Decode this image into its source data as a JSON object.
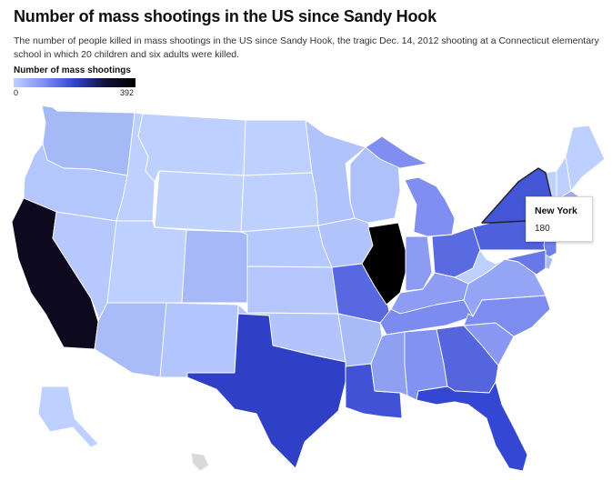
{
  "header": {
    "title": "Number of mass shootings in the US since Sandy Hook",
    "subtitle": "The number of people killed in mass shootings in the US since Sandy Hook, the tragic Dec. 14, 2012 shooting at a Connecticut elementary school in which 20 children and six adults were killed."
  },
  "legend": {
    "title": "Number of mass shootings",
    "min": "0",
    "max": "392"
  },
  "tooltip": {
    "state": "New York",
    "value": "180"
  },
  "footnote": "",
  "colors": {
    "scale": [
      "#bdd0ff",
      "#7f8df5",
      "#2f45d0",
      "#11123a",
      "#000000"
    ],
    "no_data": "#d9d9d9"
  },
  "states": [
    {
      "id": "WA",
      "name": "Washington",
      "fill": "#a6b9f7"
    },
    {
      "id": "OR",
      "name": "Oregon",
      "fill": "#b4c7fd"
    },
    {
      "id": "CA",
      "name": "California",
      "fill": "#0d0a1f"
    },
    {
      "id": "ID",
      "name": "Idaho",
      "fill": "#bdd0ff"
    },
    {
      "id": "NV",
      "name": "Nevada",
      "fill": "#b6c8fd"
    },
    {
      "id": "MT",
      "name": "Montana",
      "fill": "#bdd0ff"
    },
    {
      "id": "WY",
      "name": "Wyoming",
      "fill": "#c0d3ff"
    },
    {
      "id": "UT",
      "name": "Utah",
      "fill": "#bdd0ff"
    },
    {
      "id": "AZ",
      "name": "Arizona",
      "fill": "#aabcf8"
    },
    {
      "id": "CO",
      "name": "Colorado",
      "fill": "#a6b8f8"
    },
    {
      "id": "NM",
      "name": "New Mexico",
      "fill": "#b2c5fc"
    },
    {
      "id": "ND",
      "name": "North Dakota",
      "fill": "#bdd0ff"
    },
    {
      "id": "SD",
      "name": "South Dakota",
      "fill": "#bdd0ff"
    },
    {
      "id": "NE",
      "name": "Nebraska",
      "fill": "#b6c9fd"
    },
    {
      "id": "KS",
      "name": "Kansas",
      "fill": "#b4c6fc"
    },
    {
      "id": "OK",
      "name": "Oklahoma",
      "fill": "#b2c4fb"
    },
    {
      "id": "TX",
      "name": "Texas",
      "fill": "#2f40c6"
    },
    {
      "id": "MN",
      "name": "Minnesota",
      "fill": "#b0c3fb"
    },
    {
      "id": "IA",
      "name": "Iowa",
      "fill": "#b0c3fb"
    },
    {
      "id": "MO",
      "name": "Missouri",
      "fill": "#5868e0"
    },
    {
      "id": "AR",
      "name": "Arkansas",
      "fill": "#a8bbf8"
    },
    {
      "id": "LA",
      "name": "Louisiana",
      "fill": "#4152d6"
    },
    {
      "id": "WI",
      "name": "Wisconsin",
      "fill": "#aec1fa"
    },
    {
      "id": "IL",
      "name": "Illinois",
      "fill": "#000000"
    },
    {
      "id": "MI",
      "name": "Michigan",
      "fill": "#7f8ef0"
    },
    {
      "id": "IN",
      "name": "Indiana",
      "fill": "#8d9cf3"
    },
    {
      "id": "OH",
      "name": "Ohio",
      "fill": "#5a6be2"
    },
    {
      "id": "KY",
      "name": "Kentucky",
      "fill": "#8e9df3"
    },
    {
      "id": "TN",
      "name": "Tennessee",
      "fill": "#7c8bef"
    },
    {
      "id": "MS",
      "name": "Mississippi",
      "fill": "#8fa0f3"
    },
    {
      "id": "AL",
      "name": "Alabama",
      "fill": "#8192f0"
    },
    {
      "id": "GA",
      "name": "Georgia",
      "fill": "#5565de"
    },
    {
      "id": "FL",
      "name": "Florida",
      "fill": "#3447d2"
    },
    {
      "id": "SC",
      "name": "South Carolina",
      "fill": "#8998f2"
    },
    {
      "id": "NC",
      "name": "North Carolina",
      "fill": "#7d8cef"
    },
    {
      "id": "VA",
      "name": "Virginia",
      "fill": "#95a5f5"
    },
    {
      "id": "WV",
      "name": "West Virginia",
      "fill": "#bdd0ff"
    },
    {
      "id": "PA",
      "name": "Pennsylvania",
      "fill": "#4f60dd"
    },
    {
      "id": "NY",
      "name": "New York",
      "fill": "#4456d8"
    },
    {
      "id": "VT",
      "name": "Vermont",
      "fill": "#bdd0ff"
    },
    {
      "id": "NH",
      "name": "New Hampshire",
      "fill": "#bdd0ff"
    },
    {
      "id": "ME",
      "name": "Maine",
      "fill": "#bdd0ff"
    },
    {
      "id": "MA",
      "name": "Massachusetts",
      "fill": "#9aabf6"
    },
    {
      "id": "CT",
      "name": "Connecticut",
      "fill": "#8e9ef3"
    },
    {
      "id": "NJ",
      "name": "New Jersey",
      "fill": "#6f80ea"
    },
    {
      "id": "MD",
      "name": "Maryland",
      "fill": "#6878e8"
    },
    {
      "id": "DE",
      "name": "Delaware",
      "fill": "#a8bbf8"
    },
    {
      "id": "AK",
      "name": "Alaska",
      "fill": "#bdd0ff"
    },
    {
      "id": "HI",
      "name": "Hawaii",
      "fill": "#d9d9d9"
    }
  ]
}
